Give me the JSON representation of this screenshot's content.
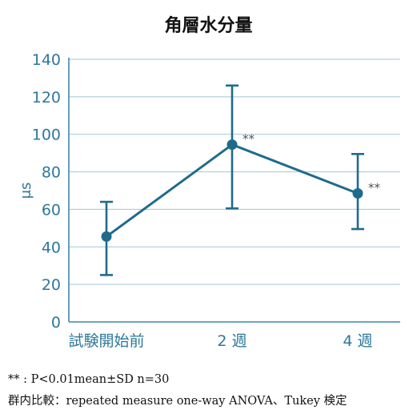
{
  "chart_data": {
    "type": "line",
    "title": "角層水分量",
    "ylabel": "μs",
    "xlabel": "",
    "categories": [
      "試験開始前",
      "2 週",
      "4 週"
    ],
    "series": [
      {
        "values": [
          45.5,
          94.5,
          68.5
        ],
        "error_low": [
          25,
          60.5,
          49.5
        ],
        "error_high": [
          64,
          126,
          89.5
        ],
        "annotations": [
          "",
          "**",
          "**"
        ]
      }
    ],
    "ylim": [
      0,
      140
    ],
    "yticks": [
      0,
      20,
      40,
      60,
      80,
      100,
      120,
      140
    ],
    "grid": true,
    "colors": {
      "series": "#1f6b8c",
      "axis": "#3a8aa9",
      "grid": "#9fc7d6",
      "tick_text": "#2e7898",
      "annotation": "#555555"
    }
  },
  "footnotes": [
    "** : P<0.01mean±SD n=30",
    "群内比較：repeated measure one-way ANOVA、Tukey 検定"
  ]
}
